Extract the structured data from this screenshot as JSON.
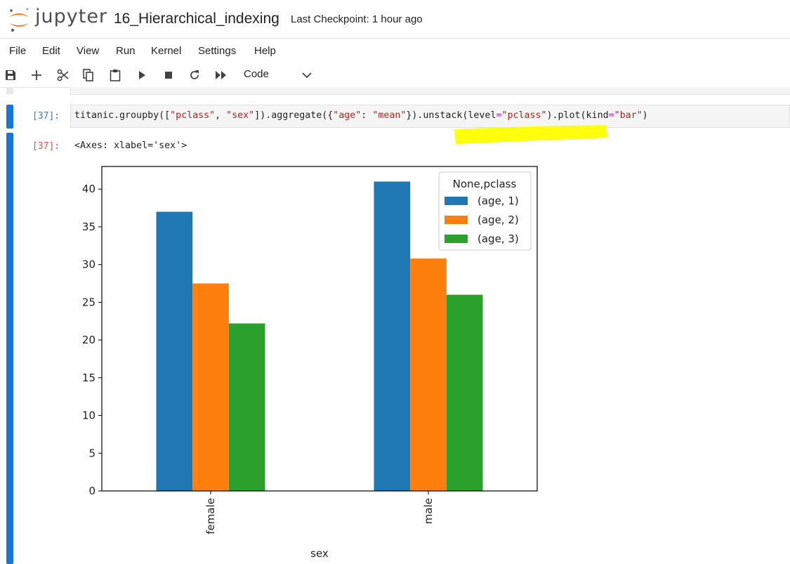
{
  "app": {
    "brand": "jupyter",
    "notebook_title": "16_Hierarchical_indexing",
    "checkpoint": "Last Checkpoint: 1 hour ago"
  },
  "menu": [
    "File",
    "Edit",
    "View",
    "Run",
    "Kernel",
    "Settings",
    "Help"
  ],
  "toolbar": {
    "cell_type": "Code",
    "icons": [
      "save-icon",
      "add-icon",
      "cut-icon",
      "copy-icon",
      "paste-icon",
      "run-icon",
      "stop-icon",
      "restart-icon",
      "run-all-icon"
    ]
  },
  "cell": {
    "in_prompt": "[37]:",
    "out_prompt": "[37]:",
    "code": {
      "p1": "titanic.groupby([",
      "s1": "\"pclass\"",
      "p2": ", ",
      "s2": "\"sex\"",
      "p3": "]).aggregate({",
      "s3": "\"age\"",
      "p4": ": ",
      "s4": "\"mean\"",
      "p5": "}).unstack(level",
      "eq1": "=",
      "s5": "\"pclass\"",
      "p6": ").plot(kind",
      "eq2": "=",
      "s6": "\"bar\"",
      "p7": ")"
    },
    "output_text": "<Axes: xlabel='sex'>"
  },
  "colors": {
    "accent": "#1976d2",
    "highlight": "#ffff00"
  },
  "chart_data": {
    "type": "bar",
    "categories": [
      "female",
      "male"
    ],
    "series": [
      {
        "name": "(age, 1)",
        "values": [
          37.0,
          41.0
        ],
        "color": "#1f77b4"
      },
      {
        "name": "(age, 2)",
        "values": [
          27.5,
          30.8
        ],
        "color": "#ff7f0e"
      },
      {
        "name": "(age, 3)",
        "values": [
          22.2,
          26.0
        ],
        "color": "#2ca02c"
      }
    ],
    "legend_title": "None,pclass",
    "legend_position": "top-right",
    "xlabel": "sex",
    "ylabel": "",
    "ylim": [
      0,
      43
    ],
    "yticks": [
      0,
      5,
      10,
      15,
      20,
      25,
      30,
      35,
      40
    ],
    "tick_labels": [
      "0",
      "5",
      "10",
      "15",
      "20",
      "25",
      "30",
      "35",
      "40"
    ]
  }
}
